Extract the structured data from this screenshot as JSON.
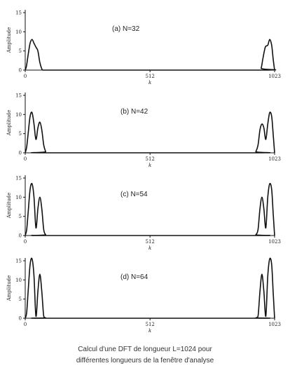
{
  "caption": {
    "line1": "Calcul d'une DFT de longueur L=1024 pour",
    "line2": "différentes longueurs de la fenêtre d'analyse"
  },
  "chart_data": [
    {
      "type": "line",
      "title": "(a) N=32",
      "xlabel": "k",
      "ylabel": "Amplitude",
      "xlim": [
        0,
        1023
      ],
      "ylim": [
        0,
        15
      ],
      "xticks": [
        "0",
        "512",
        "1023"
      ],
      "yticks": [
        "0",
        "5",
        "10",
        "15"
      ],
      "x": [
        0,
        5,
        12,
        20,
        28,
        36,
        44,
        52,
        60,
        68,
        72,
        80,
        960,
        968,
        975,
        985,
        995,
        1003,
        1011,
        1017,
        1023
      ],
      "y": [
        0,
        1,
        4,
        7,
        8,
        7,
        6,
        5,
        2,
        0.3,
        0,
        0,
        0,
        0.5,
        3,
        6,
        6.5,
        8,
        6.5,
        3,
        0
      ]
    },
    {
      "type": "line",
      "title": "(b) N=42",
      "xlabel": "k",
      "ylabel": "Amplitude",
      "xlim": [
        0,
        1023
      ],
      "ylim": [
        0,
        15
      ],
      "xticks": [
        "0",
        "512",
        "1023"
      ],
      "yticks": [
        "0",
        "5",
        "10",
        "15"
      ],
      "x": [
        0,
        6,
        12,
        20,
        28,
        36,
        44,
        52,
        60,
        68,
        76,
        84,
        90,
        940,
        946,
        955,
        963,
        971,
        979,
        987,
        995,
        1003,
        1011,
        1017,
        1023
      ],
      "y": [
        0,
        1.5,
        5,
        9.5,
        10.5,
        7.5,
        3.5,
        6.5,
        8,
        6,
        2,
        0.3,
        0,
        0,
        0.3,
        2,
        6,
        7.5,
        6.5,
        3.5,
        7.5,
        10.5,
        9.5,
        5,
        0
      ]
    },
    {
      "type": "line",
      "title": "(c) N=54",
      "xlabel": "k",
      "ylabel": "Amplitude",
      "xlim": [
        0,
        1023
      ],
      "ylim": [
        0,
        15
      ],
      "xticks": [
        "0",
        "512",
        "1023"
      ],
      "yticks": [
        "0",
        "5",
        "10",
        "15"
      ],
      "x": [
        0,
        6,
        12,
        20,
        28,
        36,
        44,
        52,
        60,
        68,
        76,
        84,
        90,
        940,
        946,
        955,
        963,
        971,
        979,
        987,
        995,
        1003,
        1011,
        1017,
        1023
      ],
      "y": [
        0,
        1.5,
        6,
        12,
        13.5,
        10,
        2,
        7,
        10,
        7,
        1.5,
        0.2,
        0,
        0,
        0.2,
        1.5,
        7,
        10,
        7,
        2,
        10,
        13.5,
        12,
        6,
        0
      ]
    },
    {
      "type": "line",
      "title": "(d) N=64",
      "xlabel": "k",
      "ylabel": "Amplitude",
      "xlim": [
        0,
        1023
      ],
      "ylim": [
        0,
        15
      ],
      "xticks": [
        "0",
        "512",
        "1023"
      ],
      "yticks": [
        "0",
        "5",
        "10",
        "15"
      ],
      "x": [
        0,
        6,
        12,
        20,
        28,
        36,
        44,
        52,
        60,
        68,
        76,
        84,
        90,
        940,
        946,
        955,
        963,
        971,
        979,
        987,
        995,
        1003,
        1011,
        1017,
        1023
      ],
      "y": [
        0,
        1.5,
        7,
        14,
        15.5,
        11,
        0.5,
        7,
        11.5,
        7,
        0.5,
        0.1,
        0,
        0,
        0.1,
        0.5,
        7,
        11.5,
        7,
        0.5,
        11,
        15.5,
        14,
        7,
        0
      ]
    }
  ]
}
